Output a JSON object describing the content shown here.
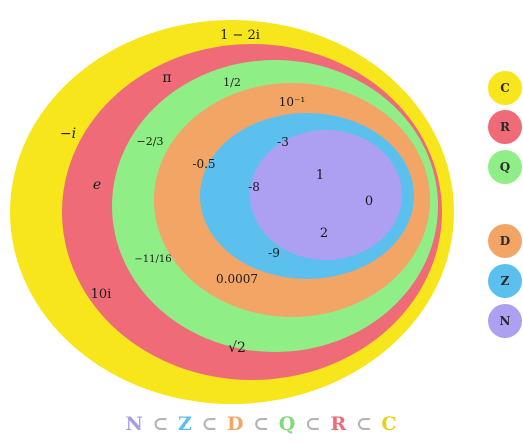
{
  "sets": [
    {
      "symbol": "C",
      "color": "#f7e61c"
    },
    {
      "symbol": "R",
      "color": "#ee6b77"
    },
    {
      "symbol": "Q",
      "color": "#8fef86"
    },
    {
      "symbol": "D",
      "color": "#f3a566"
    },
    {
      "symbol": "Z",
      "color": "#5cc0ef"
    },
    {
      "symbol": "N",
      "color": "#ad9ff2"
    }
  ],
  "elements": {
    "C": [
      "1 − 2i",
      "−i",
      "10i"
    ],
    "R": [
      "π",
      "e",
      "√2"
    ],
    "Q": [
      "1/2",
      "−2/3",
      "−11/16"
    ],
    "D": [
      "10⁻¹",
      "-0.5",
      "0.0007"
    ],
    "Z": [
      "-3",
      "-8",
      "-9"
    ],
    "N": [
      "1",
      "0",
      "2"
    ]
  },
  "chain": {
    "sets": [
      "N",
      "Z",
      "D",
      "Q",
      "R",
      "C"
    ],
    "separator": "⊂"
  }
}
